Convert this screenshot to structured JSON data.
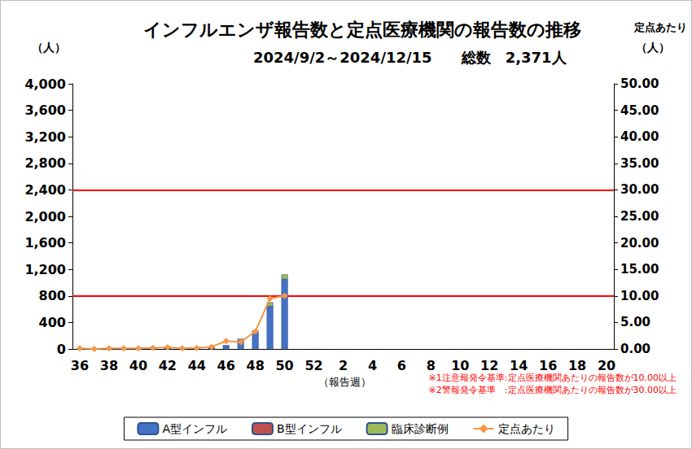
{
  "chart_data": {
    "type": "bar",
    "title": "インフルエンザ報告数と定点医療機関の報告数の推移",
    "subtitle": "2024/9/2～2024/12/15　　総数　2,371人",
    "y_label": "（人）",
    "y2_title": "定点あたり",
    "y2_label": "（人）",
    "x_label": "（報告週）",
    "categories": [
      36,
      null,
      38,
      null,
      40,
      null,
      42,
      null,
      44,
      null,
      46,
      null,
      48,
      null,
      50,
      null,
      52,
      null,
      2,
      null,
      4,
      null,
      6,
      null,
      8,
      null,
      10,
      null,
      12,
      null,
      14,
      null,
      16,
      null,
      18,
      null,
      20
    ],
    "stacked": true,
    "grid": false,
    "legend": "bottom",
    "series": [
      {
        "name": "A型インフル",
        "type": "bar",
        "color": "#4472c4",
        "values": [
          5,
          0,
          3,
          2,
          3,
          5,
          8,
          3,
          6,
          15,
          45,
          130,
          250,
          640,
          1050,
          null,
          null,
          null,
          null,
          null,
          null,
          null,
          null,
          null,
          null,
          null,
          null,
          null,
          null,
          null,
          null,
          null,
          null,
          null,
          null,
          null,
          null
        ]
      },
      {
        "name": "B型インフル",
        "type": "bar",
        "color": "#c0504d",
        "values": [
          0,
          0,
          0,
          0,
          0,
          0,
          0,
          0,
          0,
          0,
          2,
          5,
          5,
          4,
          4,
          null,
          null,
          null,
          null,
          null,
          null,
          null,
          null,
          null,
          null,
          null,
          null,
          null,
          null,
          null,
          null,
          null,
          null,
          null,
          null,
          null,
          null
        ]
      },
      {
        "name": "臨床診断例",
        "type": "bar",
        "color": "#9bbb59",
        "values": [
          0,
          0,
          0,
          0,
          0,
          0,
          0,
          0,
          0,
          3,
          8,
          20,
          25,
          60,
          70,
          null,
          null,
          null,
          null,
          null,
          null,
          null,
          null,
          null,
          null,
          null,
          null,
          null,
          null,
          null,
          null,
          null,
          null,
          null,
          null,
          null,
          null
        ]
      },
      {
        "name": "定点あたり",
        "type": "line",
        "axis": "y2",
        "color": "#f79646",
        "marker": "diamond",
        "values": [
          0.1,
          0.0,
          0.1,
          0.1,
          0.1,
          0.2,
          0.3,
          0.1,
          0.2,
          0.4,
          1.5,
          1.3,
          3.3,
          9.5,
          10.0,
          null,
          null,
          null,
          null,
          null,
          null,
          null,
          null,
          null,
          null,
          null,
          null,
          null,
          null,
          null,
          null,
          null,
          null,
          null,
          null,
          null,
          null
        ]
      }
    ],
    "ylim": [
      0,
      4000
    ],
    "yticks": [
      0,
      400,
      800,
      {
        "value": 1200,
        "label": "1,200"
      },
      {
        "value": 1600,
        "label": "1,600"
      },
      {
        "value": 2000,
        "label": "2,000"
      },
      {
        "value": 2400,
        "label": "2,400"
      },
      {
        "value": 2800,
        "label": "2,800"
      },
      {
        "value": 3200,
        "label": "3,200"
      },
      {
        "value": 3600,
        "label": "3,600"
      },
      {
        "value": 4000,
        "label": "4,000"
      }
    ],
    "y2lim": [
      0,
      50
    ],
    "y2ticks": [
      {
        "value": 0,
        "label": "0.00"
      },
      {
        "value": 5,
        "label": "5.00"
      },
      {
        "value": 10,
        "label": "10.00"
      },
      {
        "value": 15,
        "label": "15.00"
      },
      {
        "value": 20,
        "label": "20.00"
      },
      {
        "value": 25,
        "label": "25.00"
      },
      {
        "value": 30,
        "label": "30.00"
      },
      {
        "value": 35,
        "label": "35.00"
      },
      {
        "value": 40,
        "label": "40.00"
      },
      {
        "value": 45,
        "label": "45.00"
      },
      {
        "value": 50,
        "label": "50.00"
      }
    ],
    "annotations": [
      {
        "text": "※1注意報発令基準:定点医療機関あたりの報告数が10.00以上",
        "axis": "y2",
        "value": 10,
        "color": "#ff0000"
      },
      {
        "text": "※2警報発令基準　:定点医療機関あたりの報告数が30.00以上",
        "axis": "y2",
        "value": 30,
        "color": "#ff0000"
      }
    ]
  }
}
